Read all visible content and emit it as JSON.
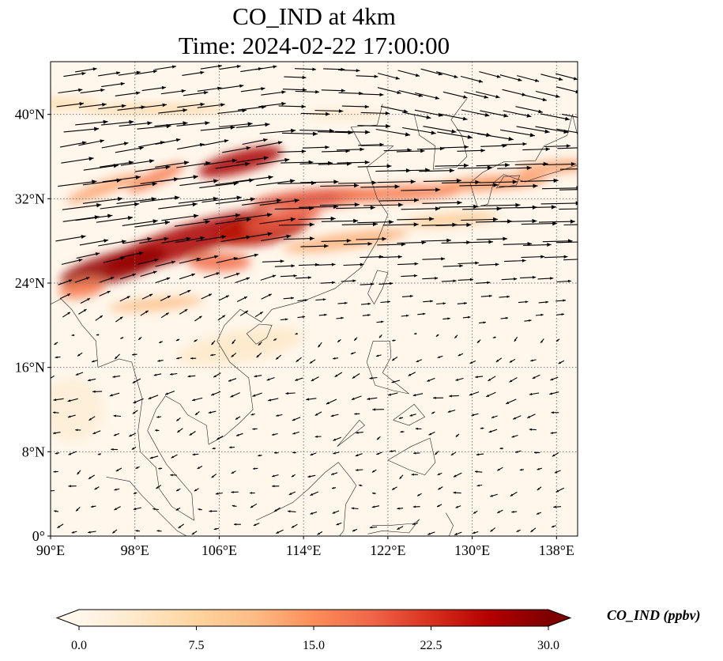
{
  "title": {
    "line1": "CO_IND at 4km",
    "line2": "Time: 2024-02-22 17:00:00"
  },
  "map": {
    "variable": "CO_IND",
    "units": "ppbv",
    "height": "4km",
    "time": "2024-02-22 17:00:00",
    "extent": {
      "lon": [
        90,
        140
      ],
      "lat": [
        0,
        45
      ]
    },
    "x_ticks": [
      {
        "value": 90,
        "label": "90°E"
      },
      {
        "value": 98,
        "label": "98°E"
      },
      {
        "value": 106,
        "label": "106°E"
      },
      {
        "value": 114,
        "label": "114°E"
      },
      {
        "value": 122,
        "label": "122°E"
      },
      {
        "value": 130,
        "label": "130°E"
      },
      {
        "value": 138,
        "label": "138°E"
      }
    ],
    "y_ticks": [
      {
        "value": 0,
        "label": "0°"
      },
      {
        "value": 8,
        "label": "8°N"
      },
      {
        "value": 16,
        "label": "16°N"
      },
      {
        "value": 24,
        "label": "24°N"
      },
      {
        "value": 32,
        "label": "32°N"
      },
      {
        "value": 40,
        "label": "40°N"
      }
    ],
    "gridlines": true,
    "colormap": "OrRd",
    "colors": [
      "#fff7ec",
      "#fee8c8",
      "#fdd49e",
      "#fdbb84",
      "#fc8d59",
      "#ef6548",
      "#d7301f",
      "#b30000",
      "#7f0000"
    ]
  },
  "colorbar": {
    "label": "CO_IND (ppbv)",
    "min": 0,
    "max": 30,
    "extend": "both",
    "ticks": [
      {
        "value": 0,
        "label": "0.0"
      },
      {
        "value": 7.5,
        "label": "7.5"
      },
      {
        "value": 15,
        "label": "15.0"
      },
      {
        "value": 22.5,
        "label": "22.5"
      },
      {
        "value": 30,
        "label": "30.0"
      }
    ]
  }
}
